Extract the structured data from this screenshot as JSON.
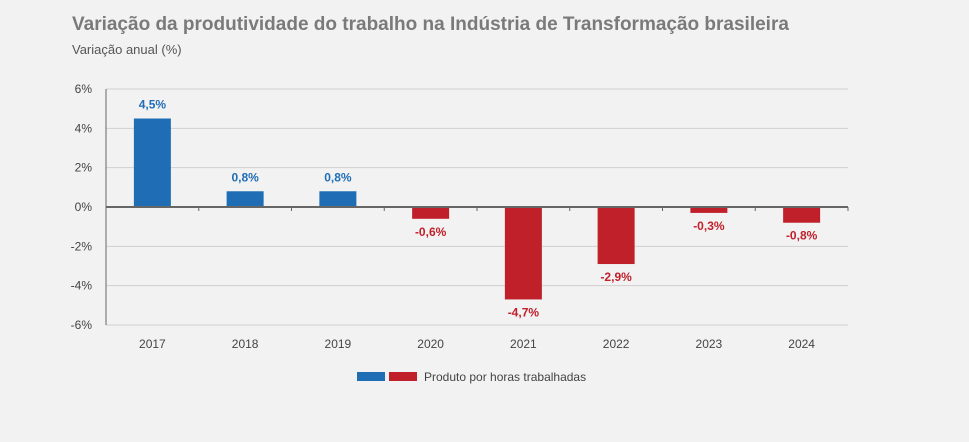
{
  "title": "Variação da produtividade do trabalho na Indústria de Transformação brasileira",
  "subtitle": "Variação anual (%)",
  "colors": {
    "positive": "#1f6db5",
    "negative": "#c0202a",
    "grid": "#d0d0d0",
    "axis": "#666666"
  },
  "chart_data": {
    "type": "bar",
    "categories": [
      "2017",
      "2018",
      "2019",
      "2020",
      "2021",
      "2022",
      "2023",
      "2024"
    ],
    "series": [
      {
        "name": "Produto por horas trabalhadas",
        "values": [
          4.5,
          0.8,
          0.8,
          -0.6,
          -4.7,
          -2.9,
          -0.3,
          -0.8
        ]
      }
    ],
    "data_labels": [
      "4,5%",
      "0,8%",
      "0,8%",
      "-0,6%",
      "-4,7%",
      "-2,9%",
      "-0,3%",
      "-0,8%"
    ],
    "ylim": [
      -6,
      6
    ],
    "yticks": [
      6,
      4,
      2,
      0,
      -2,
      -4,
      -6
    ],
    "ytick_labels": [
      "6%",
      "4%",
      "2%",
      "0%",
      "-2%",
      "-4%",
      "-6%"
    ],
    "grid": true,
    "legend": "bottom-center"
  }
}
